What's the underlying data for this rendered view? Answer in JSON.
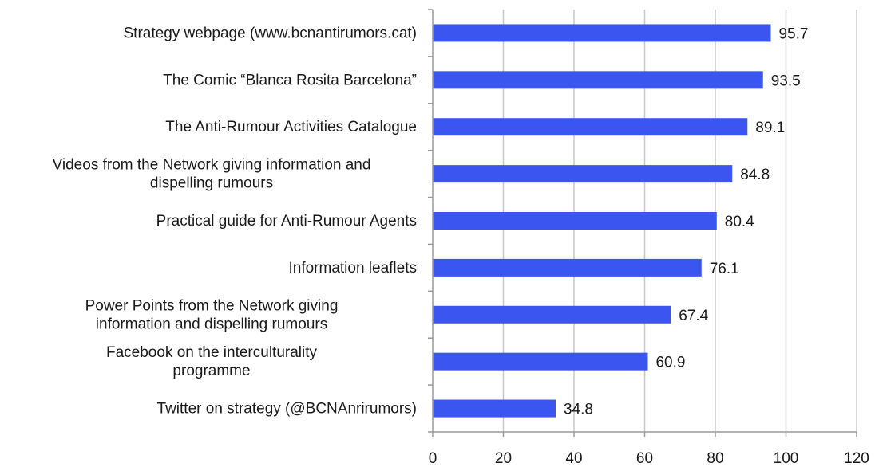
{
  "chart_data": {
    "type": "bar",
    "orientation": "horizontal",
    "categories": [
      [
        "Strategy webpage (www.bcnantirumors.cat)"
      ],
      [
        "The Comic “Blanca Rosita Barcelona”"
      ],
      [
        "The Anti-Rumour Activities Catalogue"
      ],
      [
        "Videos from the Network giving information and",
        "dispelling rumours"
      ],
      [
        "Practical guide for Anti-Rumour Agents"
      ],
      [
        "Information leaflets"
      ],
      [
        "Power Points from the Network giving",
        "information and dispelling rumours"
      ],
      [
        "Facebook on the interculturality",
        "programme"
      ],
      [
        "Twitter on strategy (@BCNAnrirumors)"
      ]
    ],
    "values": [
      95.7,
      93.5,
      89.1,
      84.8,
      80.4,
      76.1,
      67.4,
      60.9,
      34.8
    ],
    "value_labels": [
      "95.7",
      "93.5",
      "89.1",
      "84.8",
      "80.4",
      "76.1",
      "67.4",
      "60.9",
      "34.8"
    ],
    "xlim": [
      0,
      120
    ],
    "xticks": [
      0,
      20,
      40,
      60,
      80,
      100,
      120
    ],
    "xtick_labels": [
      "0",
      "20",
      "40",
      "60",
      "80",
      "100",
      "120"
    ],
    "grid": "vertical",
    "legend": "none",
    "title": "",
    "xlabel": "",
    "ylabel": "",
    "bar_color": "#3a55f0",
    "grid_color": "#c8c8c8",
    "axis_color": "#9a9a9a"
  }
}
